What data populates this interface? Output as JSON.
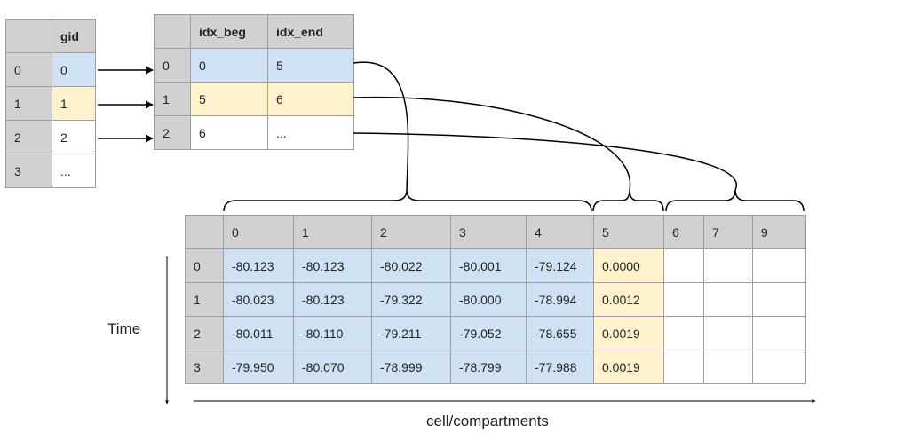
{
  "gid_table": {
    "header": [
      "",
      "gid"
    ],
    "rows": [
      {
        "index": "0",
        "gid": "0",
        "highlight": "blue"
      },
      {
        "index": "1",
        "gid": "1",
        "highlight": "yellow"
      },
      {
        "index": "2",
        "gid": "2",
        "highlight": "white"
      },
      {
        "index": "3",
        "gid": "...",
        "highlight": "white"
      }
    ]
  },
  "index_table": {
    "header": [
      "",
      "idx_beg",
      "idx_end"
    ],
    "rows": [
      {
        "index": "0",
        "idx_beg": "0",
        "idx_end": "5",
        "highlight": "blue"
      },
      {
        "index": "1",
        "idx_beg": "5",
        "idx_end": "6",
        "highlight": "yellow"
      },
      {
        "index": "2",
        "idx_beg": "6",
        "idx_end": "...",
        "highlight": "white"
      }
    ]
  },
  "data_table": {
    "columns": [
      "0",
      "1",
      "2",
      "3",
      "4",
      "5",
      "6",
      "7",
      "9"
    ],
    "column_highlight": [
      "blue",
      "blue",
      "blue",
      "blue",
      "blue",
      "yellow",
      "white",
      "white",
      "white"
    ],
    "rows": [
      {
        "index": "0",
        "values": [
          "-80.123",
          "-80.123",
          "-80.022",
          "-80.001",
          "-79.124",
          "0.0000",
          "",
          "",
          ""
        ]
      },
      {
        "index": "1",
        "values": [
          "-80.023",
          "-80.123",
          "-79.322",
          "-80.000",
          "-78.994",
          "0.0012",
          "",
          "",
          ""
        ]
      },
      {
        "index": "2",
        "values": [
          "-80.011",
          "-80.110",
          "-79.211",
          "-79.052",
          "-78.655",
          "0.0019",
          "",
          "",
          ""
        ]
      },
      {
        "index": "3",
        "values": [
          "-79.950",
          "-80.070",
          "-78.999",
          "-78.799",
          "-77.988",
          "0.0019",
          "",
          "",
          ""
        ]
      }
    ]
  },
  "axis_labels": {
    "vertical": "Time",
    "horizontal": "cell/compartments"
  },
  "colors": {
    "header": "#d1d1d1",
    "blue": "#cfe2f3",
    "yellow": "#fff2cc",
    "border": "#9e9e9e",
    "line": "#000000"
  }
}
